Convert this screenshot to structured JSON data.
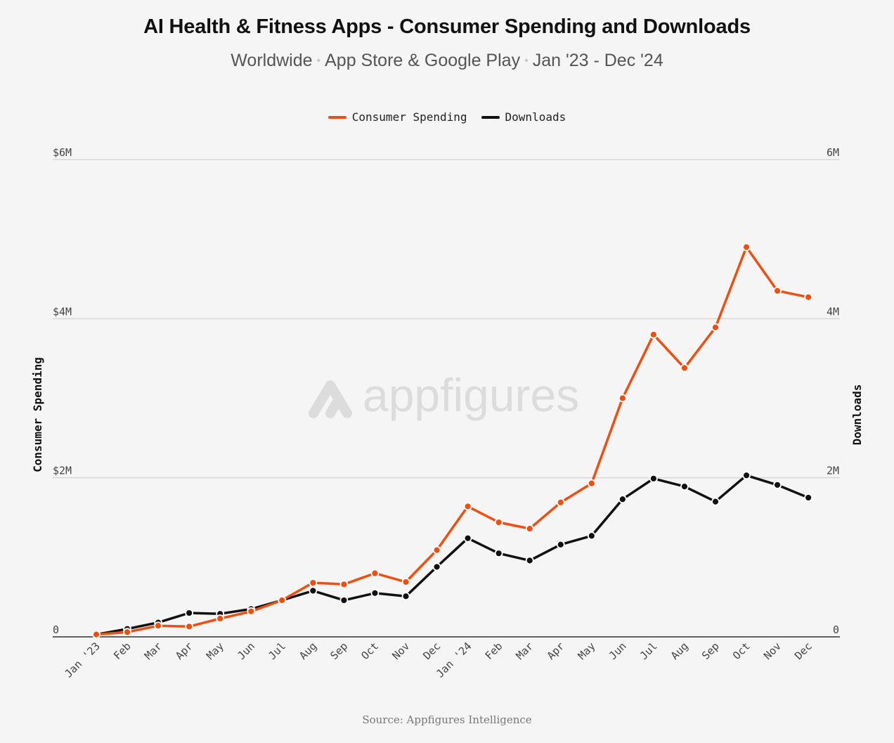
{
  "title": "AI Health & Fitness Apps - Consumer Spending and Downloads",
  "subtitle_parts": [
    "Worldwide",
    "App Store & Google Play",
    "Jan '23 - Dec '24"
  ],
  "source": "Source: Appfigures Intelligence",
  "watermark": "appfigures",
  "colors": {
    "spending": "#f04e0f",
    "downloads": "#111111",
    "grid": "#d8d8d8",
    "background": "#f5f5f5"
  },
  "chart_data": {
    "type": "line",
    "title": "AI Health & Fitness Apps - Consumer Spending and Downloads",
    "categories": [
      "Jan '23",
      "Feb",
      "Mar",
      "Apr",
      "May",
      "Jun",
      "Jul",
      "Aug",
      "Sep",
      "Oct",
      "Nov",
      "Dec",
      "Jan '24",
      "Feb",
      "Mar",
      "Apr",
      "May",
      "Jun",
      "Jul",
      "Aug",
      "Sep",
      "Oct",
      "Nov",
      "Dec"
    ],
    "ylabel_left": "Consumer Spending",
    "ylabel_right": "Downloads",
    "ylim_left": [
      0,
      6000000
    ],
    "ylim_right": [
      0,
      6000000
    ],
    "yticks_left": [
      {
        "value": 0,
        "label": "0"
      },
      {
        "value": 2000000,
        "label": "$2M"
      },
      {
        "value": 4000000,
        "label": "$4M"
      },
      {
        "value": 6000000,
        "label": "$6M"
      }
    ],
    "yticks_right": [
      {
        "value": 0,
        "label": "0"
      },
      {
        "value": 2000000,
        "label": "2M"
      },
      {
        "value": 4000000,
        "label": "4M"
      },
      {
        "value": 6000000,
        "label": "6M"
      }
    ],
    "grid": true,
    "legend_position": "top-center",
    "series": [
      {
        "name": "Consumer Spending",
        "axis": "left",
        "color": "#f04e0f",
        "values": [
          30000,
          60000,
          140000,
          130000,
          230000,
          320000,
          460000,
          680000,
          660000,
          800000,
          690000,
          1090000,
          1640000,
          1440000,
          1360000,
          1690000,
          1930000,
          3000000,
          3800000,
          3380000,
          3890000,
          4900000,
          4350000,
          4270000
        ]
      },
      {
        "name": "Downloads",
        "axis": "right",
        "color": "#111111",
        "values": [
          30000,
          100000,
          180000,
          300000,
          290000,
          350000,
          460000,
          580000,
          460000,
          550000,
          510000,
          880000,
          1240000,
          1050000,
          960000,
          1160000,
          1270000,
          1730000,
          1990000,
          1890000,
          1700000,
          2030000,
          1910000,
          1750000
        ]
      }
    ]
  }
}
